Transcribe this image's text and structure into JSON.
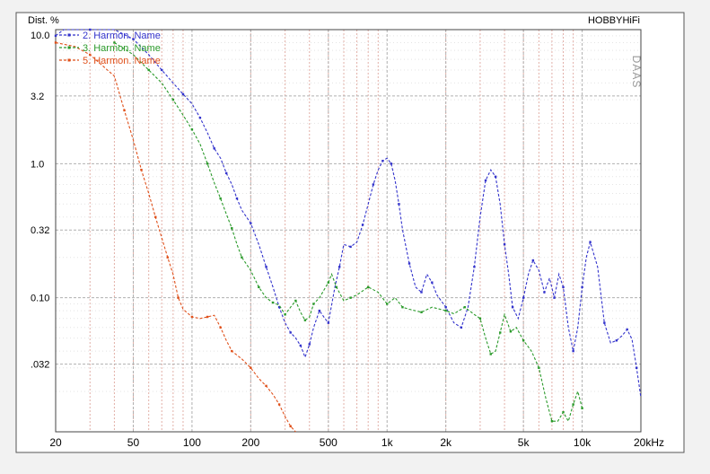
{
  "chart_data": {
    "type": "line",
    "title": "",
    "ylabel": "Dist. %",
    "xlabel": "",
    "x_scale": "log",
    "y_scale": "log",
    "xlim": [
      20,
      20000
    ],
    "ylim": [
      0.01,
      10
    ],
    "xticks": [
      {
        "value": 20,
        "label": "20"
      },
      {
        "value": 50,
        "label": "50"
      },
      {
        "value": 100,
        "label": "100"
      },
      {
        "value": 200,
        "label": "200"
      },
      {
        "value": 500,
        "label": "500"
      },
      {
        "value": 1000,
        "label": "1k"
      },
      {
        "value": 2000,
        "label": "2k"
      },
      {
        "value": 5000,
        "label": "5k"
      },
      {
        "value": 10000,
        "label": "10k"
      },
      {
        "value": 20000,
        "label": "20kHz"
      }
    ],
    "yticks": [
      {
        "value": 10,
        "label": "10.0"
      },
      {
        "value": 3.2,
        "label": "3.2"
      },
      {
        "value": 1.0,
        "label": "1.0"
      },
      {
        "value": 0.32,
        "label": "0.32"
      },
      {
        "value": 0.1,
        "label": "0.10"
      },
      {
        "value": 0.032,
        "label": ".032"
      }
    ],
    "grid": true,
    "legend_position": "top-left",
    "brand_label": "HOBBYHiFi",
    "watermark": "DAAS",
    "colors": {
      "h2": "#3333cc",
      "h3": "#2a9a2a",
      "h5": "#e0501a",
      "grid_major": "#b0b0b0",
      "grid_minor": "#e2b0a8"
    },
    "series": [
      {
        "name": "2. Harmon. Name",
        "color": "#3333cc",
        "points": [
          [
            20,
            9.0
          ],
          [
            22,
            10
          ],
          [
            30,
            10
          ],
          [
            40,
            10
          ],
          [
            50,
            8.5
          ],
          [
            60,
            6.5
          ],
          [
            70,
            5.0
          ],
          [
            80,
            4.0
          ],
          [
            90,
            3.3
          ],
          [
            100,
            2.8
          ],
          [
            110,
            2.2
          ],
          [
            120,
            1.7
          ],
          [
            130,
            1.3
          ],
          [
            140,
            1.1
          ],
          [
            150,
            0.85
          ],
          [
            160,
            0.7
          ],
          [
            170,
            0.55
          ],
          [
            180,
            0.45
          ],
          [
            200,
            0.36
          ],
          [
            220,
            0.25
          ],
          [
            240,
            0.17
          ],
          [
            260,
            0.12
          ],
          [
            280,
            0.085
          ],
          [
            300,
            0.065
          ],
          [
            320,
            0.055
          ],
          [
            340,
            0.05
          ],
          [
            360,
            0.044
          ],
          [
            380,
            0.036
          ],
          [
            400,
            0.045
          ],
          [
            420,
            0.06
          ],
          [
            450,
            0.08
          ],
          [
            480,
            0.07
          ],
          [
            500,
            0.065
          ],
          [
            540,
            0.12
          ],
          [
            570,
            0.17
          ],
          [
            600,
            0.25
          ],
          [
            650,
            0.24
          ],
          [
            700,
            0.26
          ],
          [
            750,
            0.35
          ],
          [
            800,
            0.5
          ],
          [
            850,
            0.7
          ],
          [
            900,
            0.9
          ],
          [
            950,
            1.05
          ],
          [
            1000,
            1.1
          ],
          [
            1050,
            1.0
          ],
          [
            1100,
            0.75
          ],
          [
            1150,
            0.5
          ],
          [
            1200,
            0.32
          ],
          [
            1300,
            0.18
          ],
          [
            1400,
            0.12
          ],
          [
            1500,
            0.11
          ],
          [
            1600,
            0.15
          ],
          [
            1700,
            0.13
          ],
          [
            1800,
            0.105
          ],
          [
            2000,
            0.085
          ],
          [
            2200,
            0.065
          ],
          [
            2400,
            0.06
          ],
          [
            2600,
            0.085
          ],
          [
            2800,
            0.17
          ],
          [
            3000,
            0.4
          ],
          [
            3200,
            0.75
          ],
          [
            3400,
            0.9
          ],
          [
            3600,
            0.8
          ],
          [
            3800,
            0.5
          ],
          [
            4000,
            0.25
          ],
          [
            4200,
            0.15
          ],
          [
            4400,
            0.085
          ],
          [
            4700,
            0.07
          ],
          [
            5000,
            0.1
          ],
          [
            5300,
            0.15
          ],
          [
            5600,
            0.19
          ],
          [
            6000,
            0.16
          ],
          [
            6400,
            0.11
          ],
          [
            6800,
            0.14
          ],
          [
            7200,
            0.1
          ],
          [
            7600,
            0.15
          ],
          [
            8000,
            0.12
          ],
          [
            8500,
            0.06
          ],
          [
            9000,
            0.04
          ],
          [
            9500,
            0.06
          ],
          [
            10000,
            0.12
          ],
          [
            10500,
            0.2
          ],
          [
            11000,
            0.26
          ],
          [
            12000,
            0.17
          ],
          [
            13000,
            0.065
          ],
          [
            14000,
            0.046
          ],
          [
            15000,
            0.048
          ],
          [
            16000,
            0.052
          ],
          [
            17000,
            0.058
          ],
          [
            18000,
            0.049
          ],
          [
            19000,
            0.03
          ],
          [
            20000,
            0.018
          ]
        ]
      },
      {
        "name": "3. Harmon. Name",
        "color": "#2a9a2a",
        "points": [
          [
            40,
            8.0
          ],
          [
            50,
            6.5
          ],
          [
            60,
            5.0
          ],
          [
            70,
            4.0
          ],
          [
            80,
            3.0
          ],
          [
            90,
            2.3
          ],
          [
            100,
            1.8
          ],
          [
            110,
            1.4
          ],
          [
            120,
            1.0
          ],
          [
            130,
            0.72
          ],
          [
            140,
            0.55
          ],
          [
            150,
            0.42
          ],
          [
            160,
            0.33
          ],
          [
            170,
            0.25
          ],
          [
            180,
            0.2
          ],
          [
            200,
            0.16
          ],
          [
            220,
            0.12
          ],
          [
            240,
            0.1
          ],
          [
            260,
            0.092
          ],
          [
            280,
            0.088
          ],
          [
            300,
            0.075
          ],
          [
            320,
            0.085
          ],
          [
            340,
            0.095
          ],
          [
            360,
            0.078
          ],
          [
            380,
            0.068
          ],
          [
            400,
            0.072
          ],
          [
            420,
            0.09
          ],
          [
            450,
            0.1
          ],
          [
            500,
            0.13
          ],
          [
            520,
            0.15
          ],
          [
            550,
            0.12
          ],
          [
            600,
            0.095
          ],
          [
            650,
            0.1
          ],
          [
            700,
            0.105
          ],
          [
            800,
            0.12
          ],
          [
            900,
            0.11
          ],
          [
            1000,
            0.09
          ],
          [
            1100,
            0.1
          ],
          [
            1200,
            0.085
          ],
          [
            1300,
            0.082
          ],
          [
            1500,
            0.078
          ],
          [
            1700,
            0.085
          ],
          [
            2000,
            0.08
          ],
          [
            2200,
            0.076
          ],
          [
            2500,
            0.085
          ],
          [
            2800,
            0.075
          ],
          [
            3000,
            0.07
          ],
          [
            3200,
            0.05
          ],
          [
            3400,
            0.038
          ],
          [
            3600,
            0.04
          ],
          [
            3800,
            0.055
          ],
          [
            4000,
            0.075
          ],
          [
            4300,
            0.056
          ],
          [
            4600,
            0.06
          ],
          [
            5000,
            0.048
          ],
          [
            5500,
            0.04
          ],
          [
            6000,
            0.03
          ],
          [
            6500,
            0.018
          ],
          [
            7000,
            0.012
          ],
          [
            7500,
            0.012
          ],
          [
            8000,
            0.014
          ],
          [
            8500,
            0.012
          ],
          [
            9000,
            0.016
          ],
          [
            9500,
            0.02
          ],
          [
            10000,
            0.015
          ]
        ]
      },
      {
        "name": "5. Harmon. Name",
        "color": "#e0501a",
        "points": [
          [
            20,
            8.0
          ],
          [
            25,
            7.5
          ],
          [
            30,
            6.5
          ],
          [
            40,
            4.5
          ],
          [
            45,
            2.5
          ],
          [
            50,
            1.5
          ],
          [
            55,
            0.9
          ],
          [
            60,
            0.6
          ],
          [
            65,
            0.4
          ],
          [
            70,
            0.28
          ],
          [
            75,
            0.2
          ],
          [
            80,
            0.15
          ],
          [
            85,
            0.1
          ],
          [
            90,
            0.082
          ],
          [
            100,
            0.072
          ],
          [
            110,
            0.07
          ],
          [
            120,
            0.072
          ],
          [
            130,
            0.074
          ],
          [
            140,
            0.06
          ],
          [
            150,
            0.048
          ],
          [
            160,
            0.04
          ],
          [
            180,
            0.035
          ],
          [
            200,
            0.03
          ],
          [
            220,
            0.025
          ],
          [
            240,
            0.022
          ],
          [
            260,
            0.019
          ],
          [
            280,
            0.016
          ],
          [
            300,
            0.013
          ],
          [
            320,
            0.011
          ],
          [
            340,
            0.01
          ]
        ]
      }
    ]
  }
}
